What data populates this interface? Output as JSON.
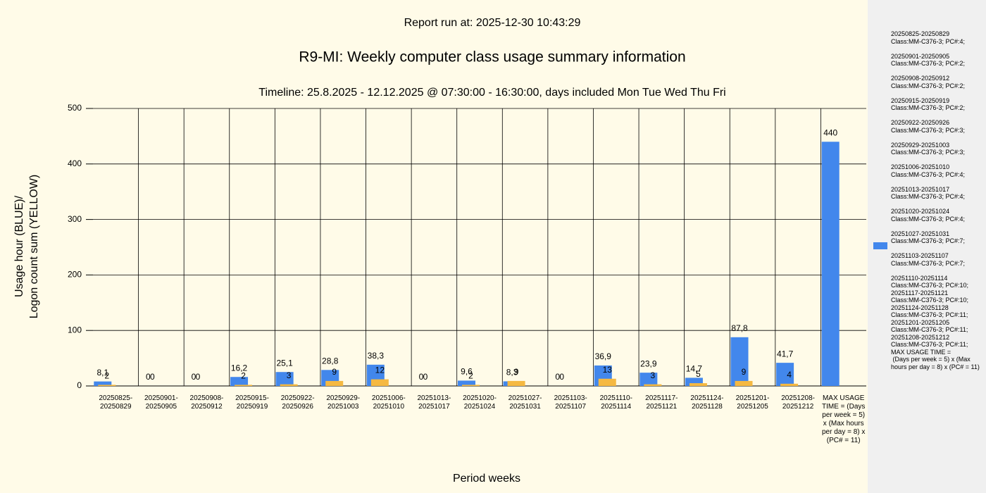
{
  "chart_data": {
    "type": "bar",
    "report_run": "Report run at: 2025-12-30 10:43:29",
    "title": "R9-MI: Weekly computer class usage summary information",
    "subtitle": "Timeline:  25.8.2025  - 12.12.2025  @  07:30:00 -  16:30:00, days included Mon Tue Wed Thu Fri",
    "x_label": "Period weeks",
    "y_label": "Usage hour (BLUE)/\nLogon count sum (YELLOW)",
    "categories": [
      "20250825-20250829",
      "20250901-20250905",
      "20250908-20250912",
      "20250915-20250919",
      "20250922-20250926",
      "20250929-20251003",
      "20251006-20251010",
      "20251013-20251017",
      "20251020-20251024",
      "20251027-20251031",
      "20251103-20251107",
      "20251110-20251114",
      "20251117-20251121",
      "20251124-20251128",
      "20251201-20251205",
      "20251208-20251212",
      "MAX USAGE TIME = (Days per week = 5) x (Max hours per day = 8) x (PC# = 11)"
    ],
    "series": [
      {
        "name": "20250825-20250829\nClass:MM-C376-3; PC#:4;\n\n20250901-20250905\nClass:MM-C376-3; PC#:2;\n\n20250908-20250912\nClass:MM-C376-3; PC#:2;\n\n20250915-20250919\nClass:MM-C376-3; PC#:2;\n\n20250922-20250926\nClass:MM-C376-3; PC#:3;\n\n20250929-20251003\nClass:MM-C376-3; PC#:3;\n\n20251006-20251010\nClass:MM-C376-3; PC#:4;\n\n20251013-20251017\nClass:MM-C376-3; PC#:4;\n\n20251020-20251024\nClass:MM-C376-3; PC#:4;\n\n20251027-20251031\nClass:MM-C376-3; PC#:7;\n\n20251103-20251107\nClass:MM-C376-3; PC#:7;\n\n20251110-20251114\nClass:MM-C376-3; PC#:10;\n20251117-20251121\nClass:MM-C376-3; PC#:10;\n20251124-20251128\nClass:MM-C376-3; PC#:11;\n20251201-20251205\nClass:MM-C376-3; PC#:11;\n20251208-20251212\nClass:MM-C376-3; PC#:11;\nMAX USAGE TIME =\n (Days per week = 5) x (Max hours per day = 8) x (PC# = 11)",
        "color": "#4287ec",
        "values": [
          8.1,
          0,
          0,
          16.2,
          25.1,
          28.8,
          38.3,
          0,
          9.6,
          8.3,
          0,
          36.9,
          23.9,
          14.7,
          87.8,
          41.7,
          440
        ],
        "value_labels": [
          "8,1",
          "0",
          "0",
          "16,2",
          "25,1",
          "28,8",
          "38,3",
          "0",
          "9,6",
          "8,3",
          "0",
          "36,9",
          "23,9",
          "14,7",
          "87,8",
          "41,7",
          "440"
        ]
      },
      {
        "color": "#f5b942",
        "values": [
          2,
          0,
          0,
          2,
          3,
          9,
          12,
          0,
          2,
          9,
          0,
          13,
          3,
          5,
          9,
          4,
          null
        ]
      }
    ],
    "ylim": [
      0,
      500
    ],
    "yticks": [
      0,
      100,
      200,
      300,
      400,
      500
    ],
    "grid": true
  }
}
